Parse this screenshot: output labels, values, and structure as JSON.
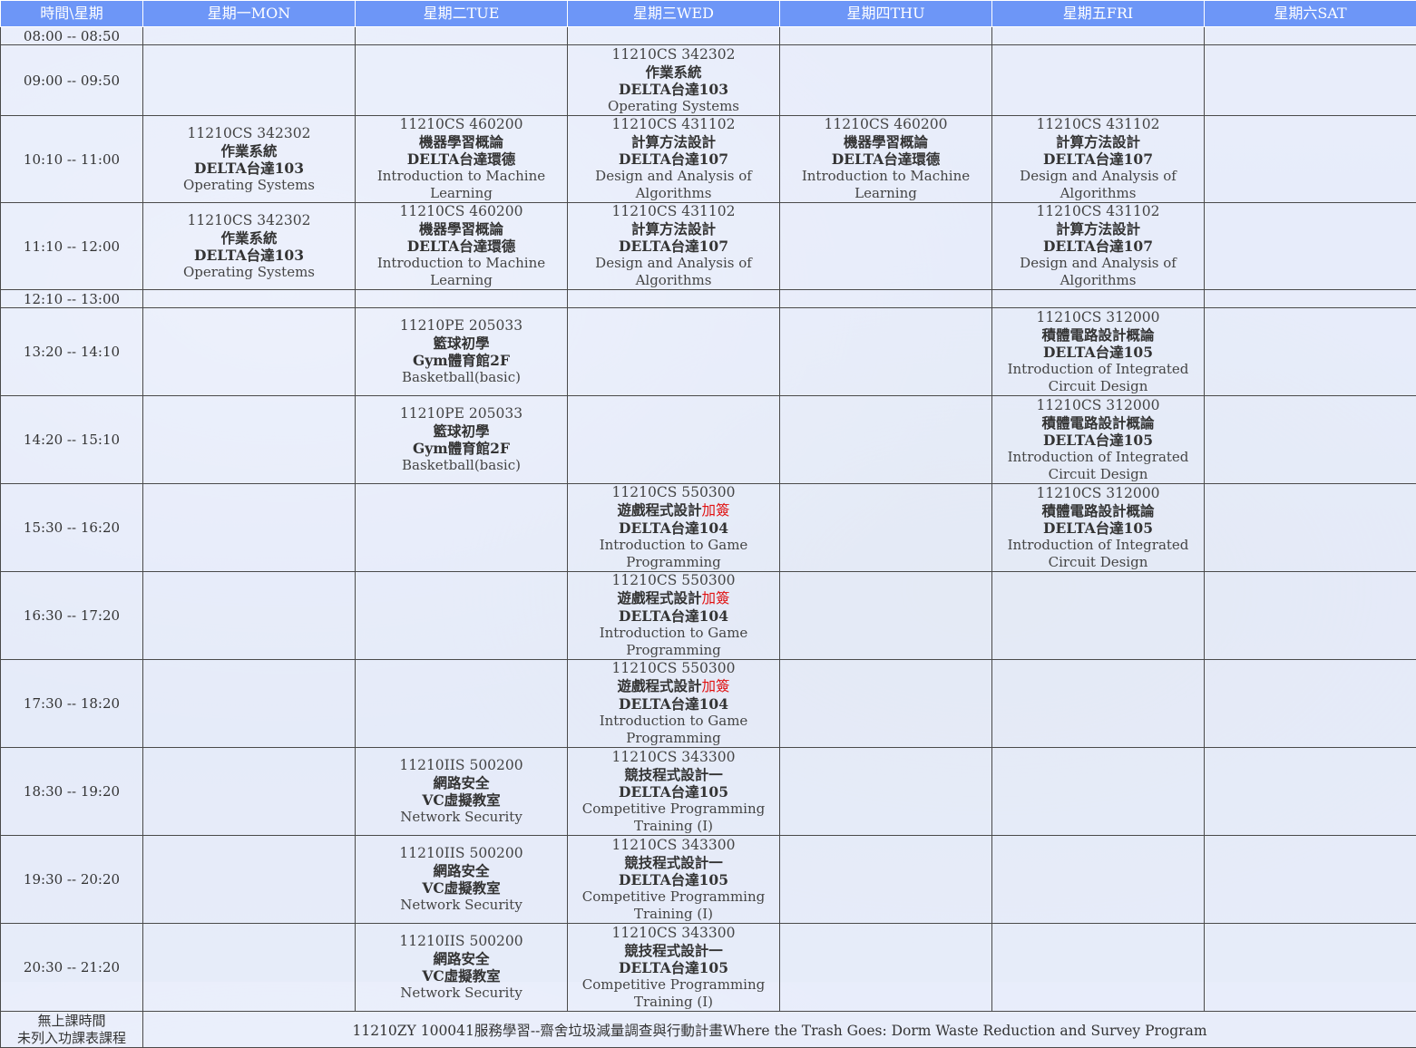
{
  "header": {
    "time_col": "時間\\星期",
    "days": [
      "星期一MON",
      "星期二TUE",
      "星期三WED",
      "星期四THU",
      "星期五FRI",
      "星期六SAT"
    ]
  },
  "slots": [
    {
      "time": "08:00 -- 08:50"
    },
    {
      "time": "09:00 -- 09:50"
    },
    {
      "time": "10:10 -- 11:00"
    },
    {
      "time": "11:10 -- 12:00"
    },
    {
      "time": "12:10 -- 13:00"
    },
    {
      "time": "13:20 -- 14:10"
    },
    {
      "time": "14:20 -- 15:10"
    },
    {
      "time": "15:30 -- 16:20"
    },
    {
      "time": "16:30 -- 17:20"
    },
    {
      "time": "17:30 -- 18:20"
    },
    {
      "time": "18:30 -- 19:20"
    },
    {
      "time": "19:30 -- 20:20"
    },
    {
      "time": "20:30 -- 21:20"
    }
  ],
  "courses": {
    "os": {
      "code": "11210CS 342302",
      "name": "作業系統",
      "room": "DELTA台達103",
      "en": "Operating Systems"
    },
    "ml": {
      "code": "11210CS 460200",
      "name": "機器學習概論",
      "room": "DELTA台達環德",
      "en": "Introduction to Machine Learning"
    },
    "algo": {
      "code": "11210CS 431102",
      "name": "計算方法設計",
      "room": "DELTA台達107",
      "en": "Design and Analysis of Algorithms"
    },
    "bball": {
      "code": "11210PE 205033",
      "name": "籃球初學",
      "room": "Gym體育館2F",
      "en": "Basketball(basic)"
    },
    "ic": {
      "code": "11210CS 312000",
      "name": "積體電路設計概論",
      "room": "DELTA台達105",
      "en": "Introduction of Integrated Circuit Design"
    },
    "game": {
      "code": "11210CS 550300",
      "name": "遊戲程式設計",
      "tag": "加簽",
      "room": "DELTA台達104",
      "en": "Introduction to Game Programming"
    },
    "netsec": {
      "code": "11210IIS 500200",
      "name": "網路安全",
      "room": "VC虛擬教室",
      "en": "Network Security"
    },
    "cpt": {
      "code": "11210CS 343300",
      "name": "競技程式設計一",
      "room": "DELTA台達105",
      "en": "Competitive Programming Training (I)"
    }
  },
  "footer": {
    "label_line1": "無上課時間",
    "label_line2": "未列入功課表課程",
    "content": "11210ZY 100041服務學習--齋舍垃圾減量調查與行動計畫Where the Trash Goes: Dorm Waste Reduction and Survey Program"
  }
}
